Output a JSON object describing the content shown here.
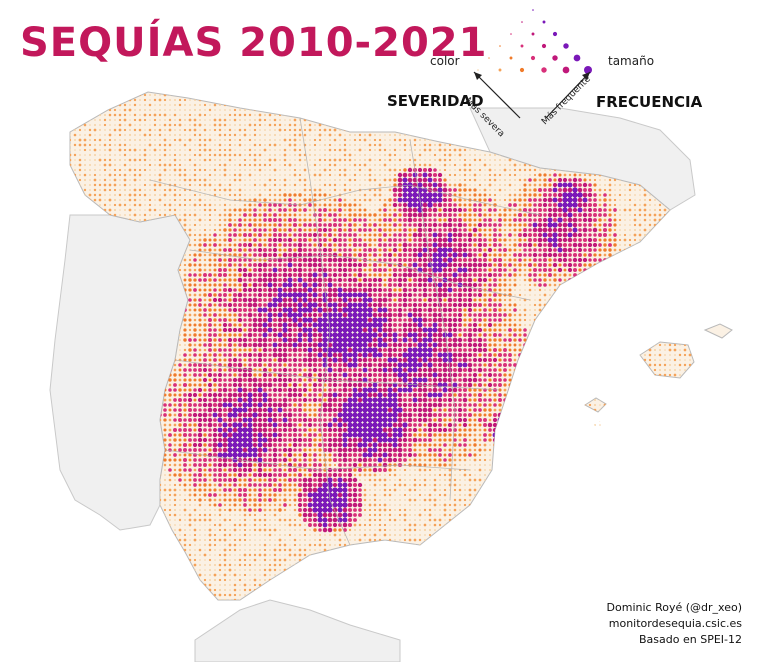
{
  "title": "SEQUÍAS 2010-2021",
  "colors": {
    "title": "#c2185b",
    "land_other": "#f0f0f0",
    "borders": "#b9b9b9",
    "palette": [
      "#f6d3a6",
      "#f5a258",
      "#f07b2a",
      "#d8307a",
      "#c0187a",
      "#7a18b8"
    ]
  },
  "legend": {
    "color_label": "color",
    "size_label": "tamaño",
    "severity_label": "SEVERIDAD",
    "frequency_label": "FRECUENCIA",
    "more_severe_label": "Más severa",
    "more_frequent_label": "Más frequente"
  },
  "credits": {
    "author": "Dominic Royé (@dr_xeo)",
    "source": "monitordesequia.csic.es",
    "method": "Basado en SPEI-12"
  }
}
